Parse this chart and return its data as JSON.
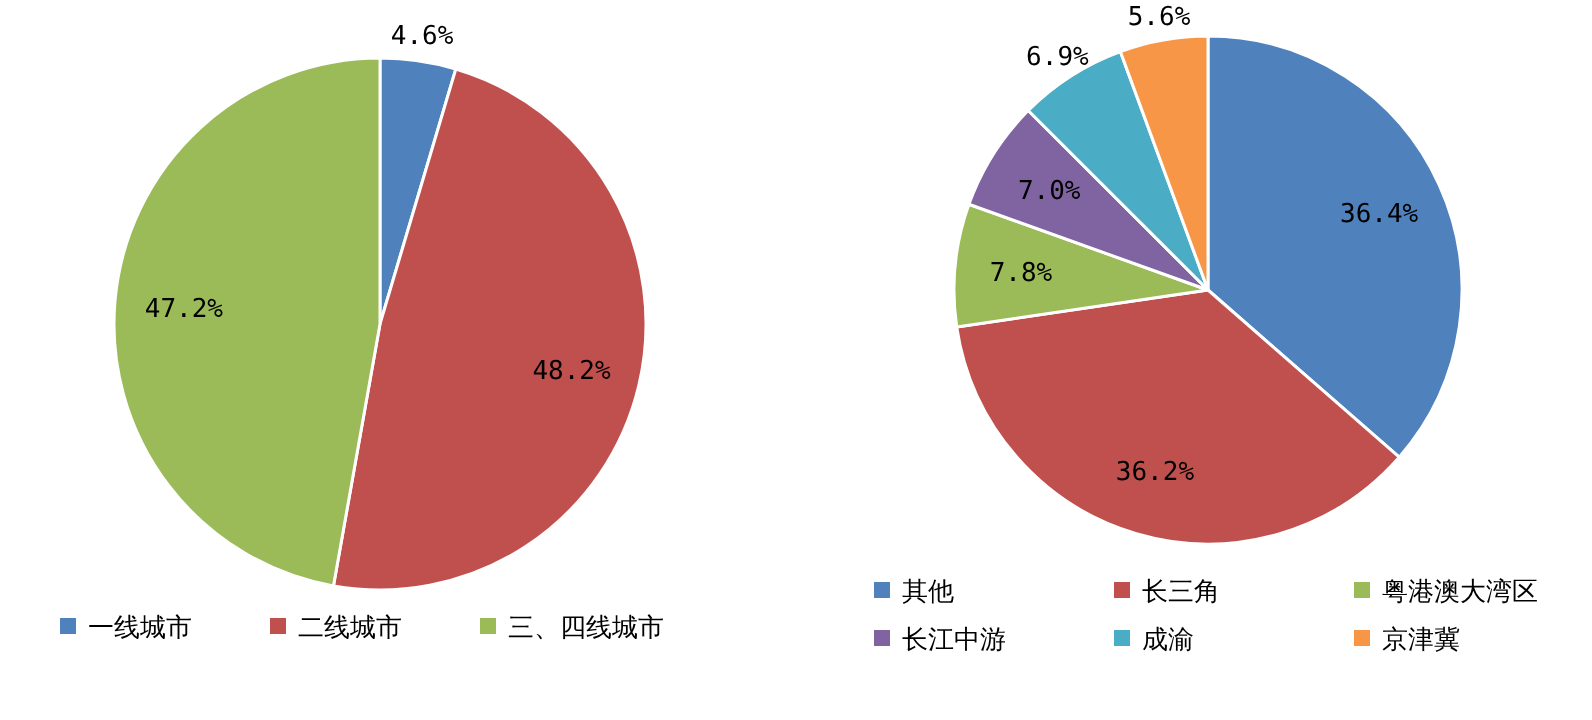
{
  "chart_data": [
    {
      "type": "pie",
      "categories": [
        "一线城市",
        "二线城市",
        "三、四线城市"
      ],
      "values": [
        4.6,
        48.2,
        47.2
      ],
      "colors": [
        "#4f81bd",
        "#c0504d",
        "#9bbb59"
      ],
      "value_labels": [
        "4.6%",
        "48.2%",
        "47.2%"
      ],
      "legend": "bottom"
    },
    {
      "type": "pie",
      "categories": [
        "其他",
        "长三角",
        "粤港澳大湾区",
        "长江中游",
        "成渝",
        "京津冀"
      ],
      "values": [
        36.4,
        36.2,
        7.8,
        7.0,
        6.9,
        5.6
      ],
      "colors": [
        "#4f81bd",
        "#c0504d",
        "#9bbb59",
        "#8064a2",
        "#4bacc6",
        "#f79646"
      ],
      "value_labels": [
        "36.4%",
        "36.2%",
        "7.8%",
        "7.0%",
        "6.9%",
        "5.6%"
      ],
      "legend": "bottom"
    }
  ]
}
